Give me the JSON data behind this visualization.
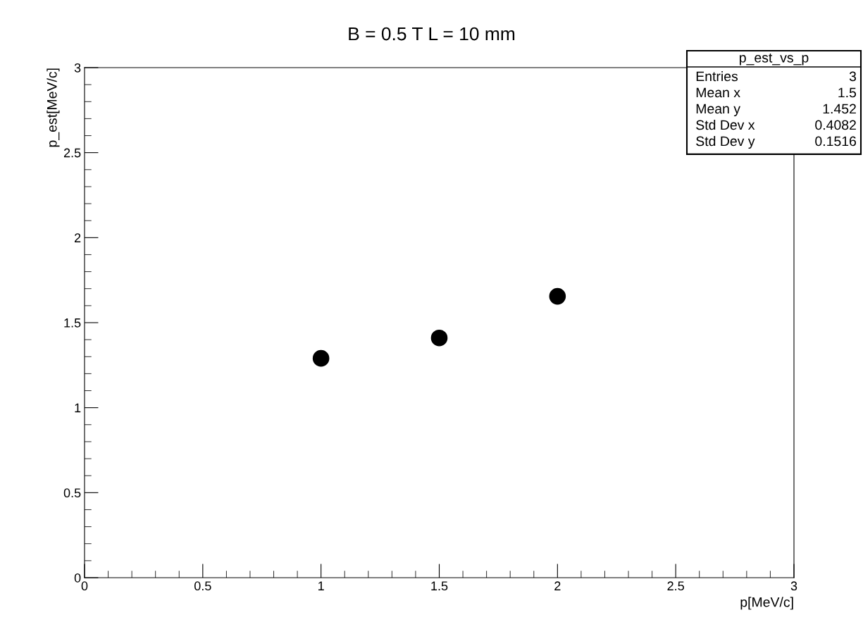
{
  "chart_data": {
    "type": "scatter",
    "title": "B = 0.5 T L = 10 mm",
    "xlabel": "p[MeV/c]",
    "ylabel": "p_est[MeV/c]",
    "x": [
      1,
      1.5,
      2
    ],
    "series": [
      {
        "color": "#000000",
        "values": [
          1.29,
          1.41,
          1.655
        ]
      }
    ],
    "xlim": [
      0,
      3
    ],
    "ylim": [
      0,
      3
    ],
    "xticks": [
      0,
      0.5,
      1,
      1.5,
      2,
      2.5,
      3
    ],
    "yticks": [
      0,
      0.5,
      1,
      1.5,
      2,
      2.5,
      3
    ],
    "marker": "circle",
    "grid": false,
    "annotations": [
      "p_est_vs_p",
      "Entries 3",
      "Mean x 1.5",
      "Mean y 1.452",
      "Std Dev x 0.4082",
      "Std Dev y 0.1516"
    ]
  }
}
